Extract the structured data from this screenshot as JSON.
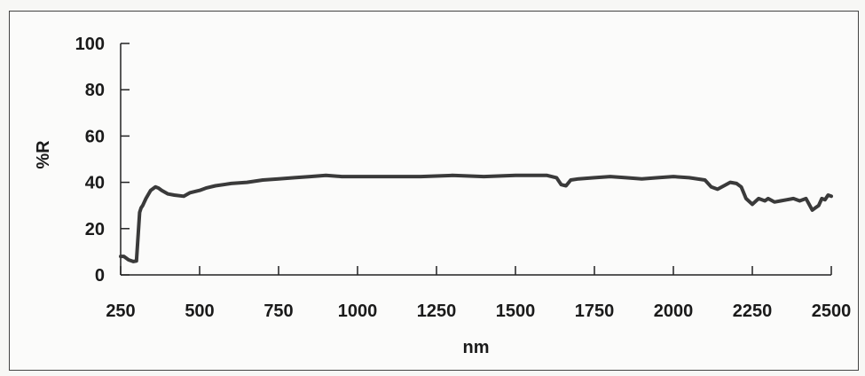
{
  "chart_data": {
    "type": "line",
    "title": "",
    "xlabel": "nm",
    "ylabel": "%R",
    "xlim": [
      250,
      2500
    ],
    "ylim": [
      0,
      100
    ],
    "xticks": [
      250,
      500,
      750,
      1000,
      1250,
      1500,
      1750,
      2000,
      2250,
      2500
    ],
    "yticks": [
      0,
      20,
      40,
      60,
      80,
      100
    ],
    "grid": false,
    "legend": "none",
    "line_color": "#3a3a3a",
    "series": [
      {
        "x": [
          250,
          260,
          275,
          290,
          300,
          310,
          315,
          320,
          330,
          345,
          360,
          370,
          380,
          400,
          420,
          450,
          470,
          500,
          520,
          550,
          600,
          650,
          700,
          750,
          800,
          850,
          900,
          950,
          1000,
          1100,
          1200,
          1300,
          1400,
          1500,
          1550,
          1600,
          1630,
          1645,
          1660,
          1675,
          1700,
          1750,
          1800,
          1850,
          1900,
          1950,
          2000,
          2050,
          2100,
          2120,
          2140,
          2160,
          2180,
          2200,
          2215,
          2230,
          2250,
          2270,
          2290,
          2300,
          2320,
          2340,
          2360,
          2380,
          2400,
          2420,
          2440,
          2450,
          2460,
          2470,
          2480,
          2490,
          2500
        ],
        "y": [
          8,
          8,
          6.5,
          5.8,
          6,
          27,
          29,
          30,
          33,
          36.5,
          38,
          37.5,
          36.5,
          35,
          34.5,
          34,
          35.5,
          36.5,
          37.5,
          38.5,
          39.5,
          40,
          41,
          41.5,
          42,
          42.5,
          43,
          42.5,
          42.5,
          42.5,
          42.5,
          43,
          42.5,
          43,
          43,
          43,
          42,
          39,
          38.5,
          41,
          41.5,
          42,
          42.5,
          42,
          41.5,
          42,
          42.5,
          42,
          41,
          38,
          37,
          38.5,
          40,
          39.5,
          38,
          33,
          30.5,
          33,
          32,
          33,
          31.5,
          32,
          32.5,
          33,
          32,
          33,
          28,
          29,
          30,
          33,
          32.5,
          34.5,
          34
        ]
      }
    ]
  }
}
